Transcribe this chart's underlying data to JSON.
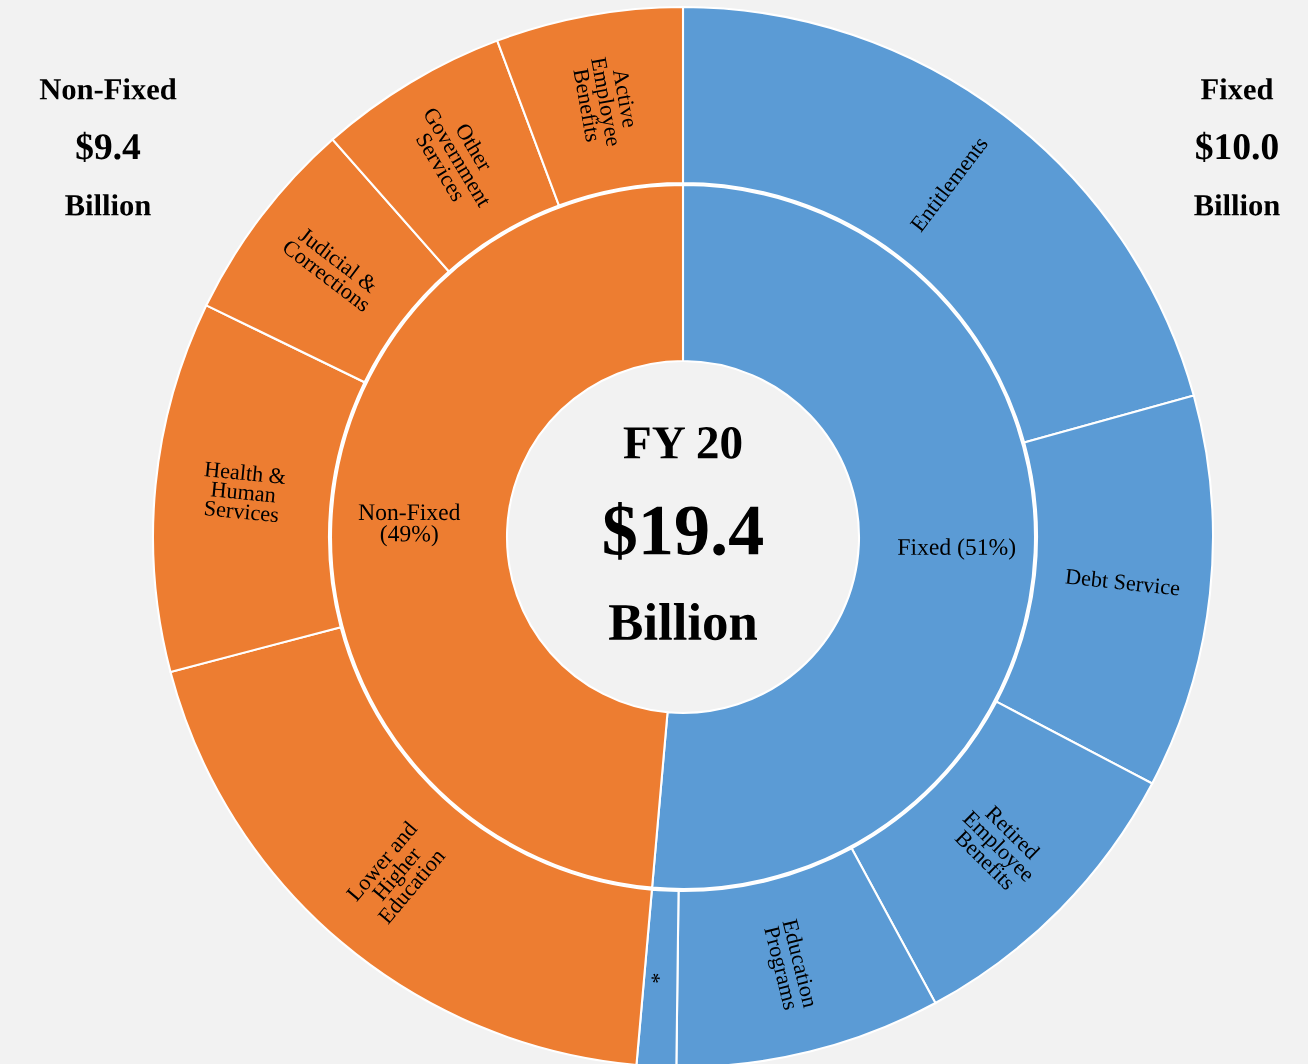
{
  "chart_data": {
    "type": "donut",
    "categories": [
      "Entitlements",
      "Debt Service",
      "Retired\nEmployee\nBenefits",
      "Education\nPrograms",
      "*",
      "Lower and\nHigher\nEducation",
      "Health &\nHuman\nServices",
      "Judicial &\nCorrections",
      "Other\nGovernment\nServices",
      "Active\nEmployee\nBenefits"
    ],
    "series": [
      {
        "values": [
          20.7,
          12.0,
          9.4,
          8.1,
          1.2,
          19.5,
          11.3,
          6.3,
          5.8,
          5.7
        ],
        "colors": [
          "#5b9bd5",
          "#5b9bd5",
          "#5b9bd5",
          "#5b9bd5",
          "#5b9bd5",
          "#ed7d31",
          "#ed7d31",
          "#ed7d31",
          "#ed7d31",
          "#ed7d31"
        ]
      },
      {
        "values": [
          51.4,
          null,
          null,
          null,
          null,
          48.6,
          null,
          null,
          null,
          null
        ],
        "value_labels": [
          "Fixed (51%)",
          null,
          null,
          null,
          null,
          "Non-Fixed\n(49%)",
          null,
          null,
          null,
          null
        ],
        "colors": [
          "#5b9bd5",
          null,
          null,
          null,
          null,
          "#ed7d31",
          null,
          null,
          null,
          null
        ]
      }
    ],
    "annotations": [
      "Non-Fixed\n$9.4\nBillion",
      "Fixed\n$10.0\nBillion",
      "FY 20\n$19.4\nBillion"
    ]
  }
}
